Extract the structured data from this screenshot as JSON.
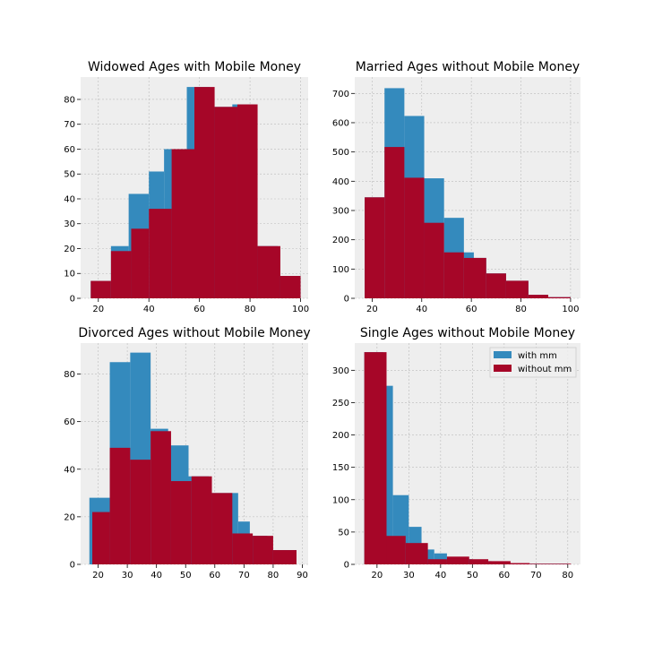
{
  "style": {
    "axes_bg": "#EEEEEE",
    "grid_color": "#BBBBBB",
    "with_color": "#348ABD",
    "without_color": "#A60628"
  },
  "legend": {
    "with_label": "with mm",
    "without_label": "without mm"
  },
  "chart_data": [
    {
      "type": "bar",
      "title": "Widowed Ages with Mobile Money",
      "xlim": [
        13,
        103
      ],
      "ylim": [
        0,
        89
      ],
      "xticks": [
        20,
        40,
        60,
        80,
        100
      ],
      "yticks": [
        0,
        10,
        20,
        30,
        40,
        50,
        60,
        70,
        80
      ],
      "series": [
        {
          "name": "with mm",
          "bins": [
            [
              17,
              25,
              7
            ],
            [
              25,
              32,
              21
            ],
            [
              32,
              40,
              42
            ],
            [
              40,
              46,
              51
            ],
            [
              46,
              55,
              60
            ],
            [
              55,
              64,
              85
            ],
            [
              64,
              73,
              77
            ],
            [
              73,
              82,
              78
            ],
            [
              82,
              91,
              21
            ],
            [
              91,
              100,
              9
            ]
          ]
        },
        {
          "name": "without mm",
          "bins": [
            [
              17,
              25,
              7
            ],
            [
              25,
              33,
              19
            ],
            [
              33,
              40,
              28
            ],
            [
              40,
              49,
              36
            ],
            [
              49,
              58,
              60
            ],
            [
              58,
              66,
              85
            ],
            [
              66,
              75,
              77
            ],
            [
              75,
              83,
              78
            ],
            [
              83,
              92,
              21
            ],
            [
              92,
              100,
              9
            ]
          ]
        }
      ]
    },
    {
      "type": "bar",
      "title": "Married Ages without Mobile Money",
      "xlim": [
        13,
        104
      ],
      "ylim": [
        0,
        756
      ],
      "xticks": [
        20,
        40,
        60,
        80,
        100
      ],
      "yticks": [
        0,
        100,
        200,
        300,
        400,
        500,
        600,
        700
      ],
      "series": [
        {
          "name": "with mm",
          "bins": [
            [
              17,
              25,
              345
            ],
            [
              25,
              33,
              718
            ],
            [
              33,
              41,
              623
            ],
            [
              41,
              49,
              410
            ],
            [
              49,
              57,
              275
            ],
            [
              57,
              61,
              157
            ],
            [
              61,
              66,
              138
            ],
            [
              66,
              74,
              85
            ],
            [
              74,
              83,
              60
            ],
            [
              83,
              91,
              12
            ],
            [
              91,
              100,
              4
            ]
          ]
        },
        {
          "name": "without mm",
          "bins": [
            [
              17,
              25,
              345
            ],
            [
              25,
              33,
              517
            ],
            [
              33,
              41,
              412
            ],
            [
              41,
              49,
              258
            ],
            [
              49,
              57,
              157
            ],
            [
              57,
              66,
              138
            ],
            [
              66,
              74,
              85
            ],
            [
              74,
              83,
              60
            ],
            [
              83,
              91,
              12
            ],
            [
              91,
              100,
              4
            ]
          ]
        }
      ]
    },
    {
      "type": "bar",
      "title": "Divorced Ages without Mobile Money",
      "xlim": [
        14,
        92
      ],
      "ylim": [
        0,
        93
      ],
      "xticks": [
        20,
        30,
        40,
        50,
        60,
        70,
        80,
        90
      ],
      "yticks": [
        0,
        20,
        40,
        60,
        80
      ],
      "series": [
        {
          "name": "with mm",
          "bins": [
            [
              17,
              24,
              28
            ],
            [
              24,
              31,
              85
            ],
            [
              31,
              38,
              89
            ],
            [
              38,
              44,
              57
            ],
            [
              44,
              51,
              50
            ],
            [
              51,
              58,
              37
            ],
            [
              58,
              64,
              30
            ],
            [
              64,
              68,
              30
            ],
            [
              68,
              72,
              18
            ],
            [
              72,
              78,
              12
            ],
            [
              78,
              88,
              6
            ]
          ]
        },
        {
          "name": "without mm",
          "bins": [
            [
              18,
              24,
              22
            ],
            [
              24,
              31,
              49
            ],
            [
              31,
              38,
              44
            ],
            [
              38,
              45,
              56
            ],
            [
              45,
              52,
              35
            ],
            [
              52,
              59,
              37
            ],
            [
              59,
              66,
              30
            ],
            [
              66,
              73,
              13
            ],
            [
              73,
              80,
              12
            ],
            [
              80,
              88,
              6
            ]
          ]
        }
      ]
    },
    {
      "type": "bar",
      "title": "Single Ages without Mobile Money",
      "xlim": [
        13,
        84
      ],
      "ylim": [
        0,
        342
      ],
      "xticks": [
        20,
        30,
        40,
        50,
        60,
        70,
        80
      ],
      "yticks": [
        0,
        50,
        100,
        150,
        200,
        250,
        300
      ],
      "series": [
        {
          "name": "with mm",
          "bins": [
            [
              16,
              22,
              328
            ],
            [
              22,
              25,
              276
            ],
            [
              25,
              30,
              107
            ],
            [
              30,
              34,
              58
            ],
            [
              34,
              38,
              23
            ],
            [
              38,
              42,
              17
            ],
            [
              42,
              46,
              11
            ],
            [
              46,
              50,
              8
            ],
            [
              50,
              56,
              5
            ],
            [
              56,
              62,
              2
            ],
            [
              62,
              80,
              1
            ]
          ]
        },
        {
          "name": "without mm",
          "bins": [
            [
              16,
              23,
              328
            ],
            [
              23,
              29,
              44
            ],
            [
              29,
              36,
              33
            ],
            [
              36,
              42,
              8
            ],
            [
              42,
              49,
              12
            ],
            [
              49,
              55,
              8
            ],
            [
              55,
              62,
              5
            ],
            [
              62,
              68,
              2
            ],
            [
              68,
              75,
              1
            ],
            [
              75,
              81,
              1
            ]
          ]
        }
      ]
    }
  ]
}
